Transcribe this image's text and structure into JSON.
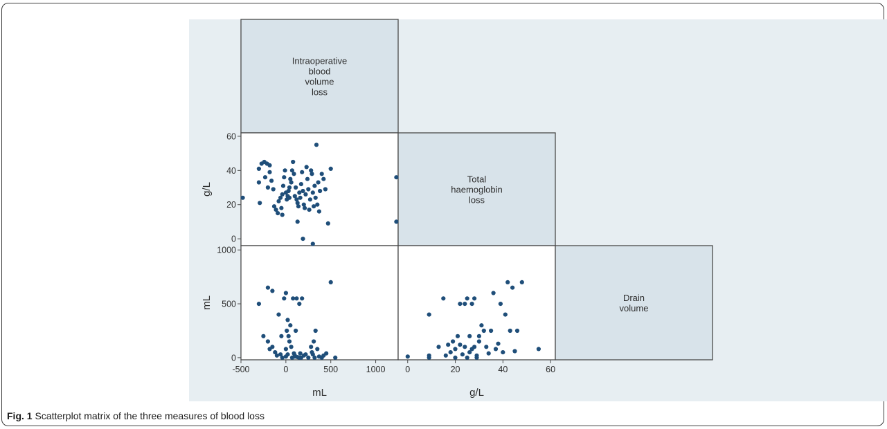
{
  "figure": {
    "caption_label": "Fig. 1",
    "caption_text": "Scatterplot matrix of the three measures of blood loss"
  },
  "chart_data": {
    "type": "scatter",
    "variables": [
      {
        "id": "intraop",
        "label_lines": [
          "Intraoperative",
          "blood",
          "volume",
          "loss"
        ],
        "unit": "mL",
        "range": [
          -500,
          1250
        ],
        "ticks": [
          -500,
          0,
          500,
          1000
        ]
      },
      {
        "id": "hb",
        "label_lines": [
          "Total",
          "haemoglobin",
          "loss"
        ],
        "unit": "g/L",
        "range": [
          -4,
          62
        ],
        "ticks": [
          0,
          20,
          40,
          60
        ]
      },
      {
        "id": "drain",
        "label_lines": [
          "Drain",
          "volume"
        ],
        "unit": "mL",
        "range": [
          -20,
          1040
        ],
        "ticks": [
          0,
          500,
          1000
        ]
      }
    ],
    "axis_titles": {
      "x_left": "mL",
      "x_middle": "g/L",
      "y_top": "g/L",
      "y_bottom": "mL"
    },
    "color": "#1f4e79",
    "panels": [
      {
        "name": "hb-vs-intraop",
        "x_var": "intraop",
        "y_var": "hb",
        "points": [
          [
            -480,
            24
          ],
          [
            -300,
            41
          ],
          [
            -270,
            44
          ],
          [
            -240,
            45
          ],
          [
            -210,
            44
          ],
          [
            -180,
            43
          ],
          [
            -300,
            33
          ],
          [
            -290,
            21
          ],
          [
            -230,
            36
          ],
          [
            -200,
            30
          ],
          [
            -180,
            39
          ],
          [
            -160,
            34
          ],
          [
            -140,
            29
          ],
          [
            -130,
            19
          ],
          [
            -110,
            17
          ],
          [
            -90,
            15
          ],
          [
            -80,
            22
          ],
          [
            -60,
            24
          ],
          [
            -50,
            18
          ],
          [
            -40,
            26
          ],
          [
            -30,
            31
          ],
          [
            -20,
            36
          ],
          [
            -10,
            40
          ],
          [
            0,
            27
          ],
          [
            10,
            23
          ],
          [
            20,
            25
          ],
          [
            30,
            28
          ],
          [
            40,
            24
          ],
          [
            50,
            35
          ],
          [
            60,
            33
          ],
          [
            70,
            40
          ],
          [
            80,
            45
          ],
          [
            90,
            38
          ],
          [
            100,
            25
          ],
          [
            110,
            30
          ],
          [
            120,
            23
          ],
          [
            130,
            21
          ],
          [
            140,
            19
          ],
          [
            150,
            27
          ],
          [
            160,
            24
          ],
          [
            170,
            32
          ],
          [
            180,
            39
          ],
          [
            190,
            28
          ],
          [
            200,
            20
          ],
          [
            210,
            18
          ],
          [
            220,
            26
          ],
          [
            230,
            42
          ],
          [
            240,
            35
          ],
          [
            250,
            29
          ],
          [
            260,
            17
          ],
          [
            270,
            23
          ],
          [
            280,
            40
          ],
          [
            290,
            38
          ],
          [
            300,
            27
          ],
          [
            310,
            19
          ],
          [
            320,
            31
          ],
          [
            330,
            24
          ],
          [
            340,
            55
          ],
          [
            350,
            20
          ],
          [
            360,
            33
          ],
          [
            370,
            16
          ],
          [
            380,
            28
          ],
          [
            400,
            38
          ],
          [
            420,
            35
          ],
          [
            440,
            29
          ],
          [
            470,
            9
          ],
          [
            500,
            41
          ],
          [
            -40,
            14
          ],
          [
            40,
            30
          ],
          [
            130,
            10
          ],
          [
            190,
            0
          ],
          [
            300,
            -3
          ],
          [
            1230,
            36
          ],
          [
            1230,
            10
          ]
        ]
      },
      {
        "name": "drain-vs-intraop",
        "x_var": "intraop",
        "y_var": "drain",
        "points": [
          [
            -300,
            500
          ],
          [
            -200,
            650
          ],
          [
            -150,
            620
          ],
          [
            -250,
            200
          ],
          [
            -200,
            150
          ],
          [
            -180,
            80
          ],
          [
            -150,
            100
          ],
          [
            -120,
            50
          ],
          [
            -100,
            20
          ],
          [
            -80,
            400
          ],
          [
            -60,
            30
          ],
          [
            -40,
            0
          ],
          [
            -20,
            550
          ],
          [
            0,
            600
          ],
          [
            0,
            10
          ],
          [
            0,
            80
          ],
          [
            10,
            250
          ],
          [
            20,
            30
          ],
          [
            30,
            200
          ],
          [
            40,
            150
          ],
          [
            50,
            300
          ],
          [
            60,
            100
          ],
          [
            70,
            0
          ],
          [
            80,
            550
          ],
          [
            90,
            40
          ],
          [
            100,
            20
          ],
          [
            110,
            250
          ],
          [
            120,
            550
          ],
          [
            130,
            5
          ],
          [
            150,
            500
          ],
          [
            160,
            40
          ],
          [
            170,
            0
          ],
          [
            180,
            550
          ],
          [
            200,
            20
          ],
          [
            220,
            30
          ],
          [
            250,
            0
          ],
          [
            280,
            100
          ],
          [
            290,
            50
          ],
          [
            300,
            30
          ],
          [
            310,
            150
          ],
          [
            320,
            0
          ],
          [
            330,
            250
          ],
          [
            350,
            80
          ],
          [
            370,
            10
          ],
          [
            400,
            0
          ],
          [
            420,
            20
          ],
          [
            450,
            40
          ],
          [
            500,
            700
          ],
          [
            550,
            0
          ],
          [
            20,
            350
          ],
          [
            -50,
            200
          ],
          [
            100,
            10
          ],
          [
            150,
            0
          ]
        ]
      },
      {
        "name": "drain-vs-hb",
        "x_var": "hb",
        "y_var": "drain",
        "points": [
          [
            0,
            10
          ],
          [
            9,
            0
          ],
          [
            9,
            20
          ],
          [
            9,
            400
          ],
          [
            13,
            100
          ],
          [
            15,
            550
          ],
          [
            16,
            20
          ],
          [
            17,
            120
          ],
          [
            18,
            50
          ],
          [
            19,
            150
          ],
          [
            20,
            0
          ],
          [
            20,
            80
          ],
          [
            21,
            200
          ],
          [
            22,
            500
          ],
          [
            22,
            120
          ],
          [
            23,
            30
          ],
          [
            24,
            500
          ],
          [
            24,
            100
          ],
          [
            25,
            0
          ],
          [
            25,
            550
          ],
          [
            26,
            200
          ],
          [
            26,
            50
          ],
          [
            27,
            80
          ],
          [
            27,
            500
          ],
          [
            28,
            550
          ],
          [
            28,
            100
          ],
          [
            29,
            20
          ],
          [
            29,
            0
          ],
          [
            30,
            200
          ],
          [
            30,
            150
          ],
          [
            31,
            300
          ],
          [
            32,
            250
          ],
          [
            33,
            100
          ],
          [
            34,
            40
          ],
          [
            35,
            250
          ],
          [
            36,
            600
          ],
          [
            37,
            80
          ],
          [
            38,
            130
          ],
          [
            39,
            500
          ],
          [
            40,
            50
          ],
          [
            41,
            400
          ],
          [
            42,
            700
          ],
          [
            43,
            250
          ],
          [
            44,
            650
          ],
          [
            45,
            60
          ],
          [
            46,
            250
          ],
          [
            48,
            700
          ],
          [
            55,
            80
          ]
        ]
      }
    ]
  }
}
